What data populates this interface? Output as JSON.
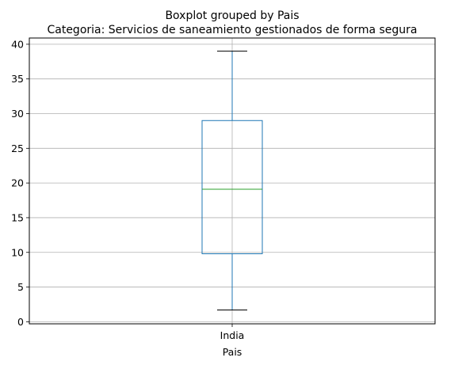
{
  "chart_data": {
    "type": "boxplot",
    "suptitle": "Boxplot grouped by Pais",
    "title": "Categoria: Servicios de saneamiento gestionados de forma segura",
    "xlabel": "Pais",
    "ylabel": "",
    "categories": [
      "India"
    ],
    "boxes": [
      {
        "category": "India",
        "whisker_low": 1.7,
        "q1": 9.8,
        "median": 19.1,
        "q3": 29.0,
        "whisker_high": 39.0
      }
    ],
    "ylim": [
      -0.3,
      40.9
    ],
    "yticks": [
      0,
      5,
      10,
      15,
      20,
      25,
      30,
      35,
      40
    ],
    "grid": true,
    "colors": {
      "box": "#1f77b4",
      "median": "#2ca02c",
      "cap": "#000000",
      "grid": "#b0b0b0"
    }
  }
}
